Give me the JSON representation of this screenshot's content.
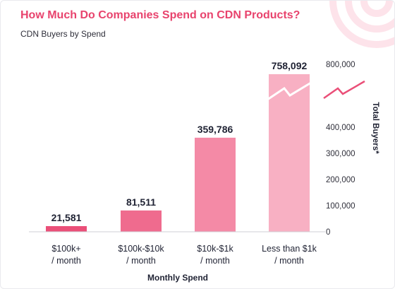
{
  "title": "How Much Do Companies Spend on CDN Products?",
  "subtitle": "CDN Buyers by Spend",
  "colors": {
    "title": "#e8436d",
    "bar_1": "#ea4f78",
    "bar_2": "#ef6b8e",
    "bar_3": "#f48aa6",
    "bar_4": "#f8b0c3",
    "axis_break": "#ea4f78",
    "axis_text": "#2f2f3a"
  },
  "chart_data": {
    "type": "bar",
    "title": "How Much Do Companies Spend on CDN Products?",
    "subtitle": "CDN Buyers by Spend",
    "categories": [
      [
        "$100k+",
        "/ month"
      ],
      [
        "$100k-$10k",
        "/ month"
      ],
      [
        "$10k-$1k",
        "/ month"
      ],
      [
        "Less than $1k",
        "/ month"
      ]
    ],
    "values": [
      21581,
      81511,
      359786,
      758092
    ],
    "value_labels": [
      "21,581",
      "81,511",
      "359,786",
      "758,092"
    ],
    "xlabel": "Monthly Spend",
    "ylabel": "Total Buyers*",
    "y_ticks": [
      0,
      100000,
      200000,
      300000,
      400000,
      800000
    ],
    "y_tick_labels": [
      "0",
      "100,000",
      "200,000",
      "300,000",
      "400,000",
      "800,000"
    ],
    "y_axis_break": true,
    "y_axis_position": "right",
    "grid": false
  }
}
